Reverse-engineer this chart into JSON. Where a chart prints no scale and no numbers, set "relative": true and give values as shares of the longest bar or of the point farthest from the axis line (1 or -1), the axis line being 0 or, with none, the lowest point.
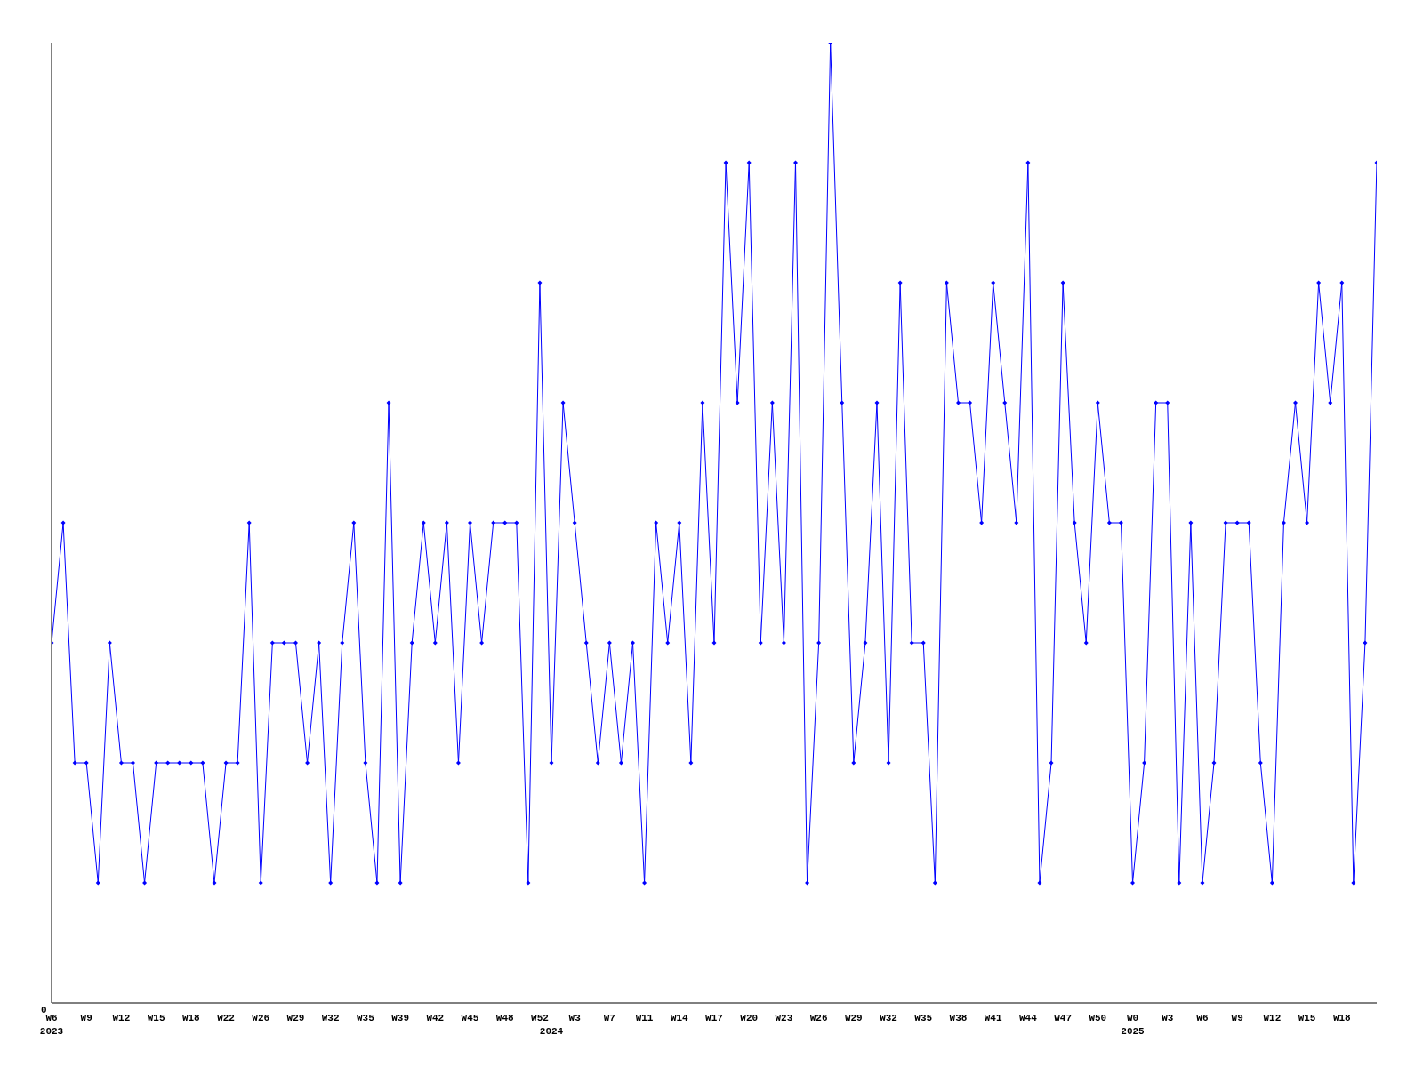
{
  "chart_data": {
    "type": "line",
    "relative": true,
    "marker": "diamond",
    "grid": false,
    "legend": false,
    "annotations": [
      "0"
    ],
    "categories": [
      "W6\n2023",
      null,
      null,
      "W9",
      null,
      null,
      "W12",
      null,
      null,
      "W15",
      null,
      null,
      "W18",
      null,
      null,
      "W22",
      null,
      null,
      "W26",
      null,
      null,
      "W29",
      null,
      null,
      "W32",
      null,
      null,
      "W35",
      null,
      null,
      "W39",
      null,
      null,
      "W42",
      null,
      null,
      "W45",
      null,
      null,
      "W48",
      null,
      null,
      "W52",
      "\n2024",
      null,
      "W3",
      null,
      null,
      "W7",
      null,
      null,
      "W11",
      null,
      null,
      "W14",
      null,
      null,
      "W17",
      null,
      null,
      "W20",
      null,
      null,
      "W23",
      null,
      null,
      "W26",
      null,
      null,
      "W29",
      null,
      null,
      "W32",
      null,
      null,
      "W35",
      null,
      null,
      "W38",
      null,
      null,
      "W41",
      null,
      null,
      "W44",
      null,
      null,
      "W47",
      null,
      null,
      "W50",
      null,
      null,
      "W0\n2025",
      null,
      null,
      "W3",
      null,
      null,
      "W6",
      null,
      null,
      "W9",
      null,
      null,
      "W12",
      null,
      null,
      "W15",
      null,
      null,
      "W18",
      null,
      null,
      null
    ],
    "series": [
      {
        "color": "#0000ff",
        "values": [
          0.375,
          0.5,
          0.25,
          0.25,
          0.125,
          0.375,
          0.25,
          0.25,
          0.125,
          0.25,
          0.25,
          0.25,
          0.25,
          0.25,
          0.125,
          0.25,
          0.25,
          0.5,
          0.125,
          0.375,
          0.375,
          0.375,
          0.25,
          0.375,
          0.125,
          0.375,
          0.5,
          0.25,
          0.125,
          0.625,
          0.125,
          0.375,
          0.5,
          0.375,
          0.5,
          0.25,
          0.5,
          0.375,
          0.5,
          0.5,
          0.5,
          0.125,
          0.75,
          0.25,
          0.625,
          0.5,
          0.375,
          0.25,
          0.375,
          0.25,
          0.375,
          0.125,
          0.5,
          0.375,
          0.5,
          0.25,
          0.625,
          0.375,
          0.875,
          0.625,
          0.875,
          0.375,
          0.625,
          0.375,
          0.875,
          0.125,
          0.375,
          1,
          0.625,
          0.25,
          0.375,
          0.625,
          0.25,
          0.75,
          0.375,
          0.375,
          0.125,
          0.75,
          0.625,
          0.625,
          0.5,
          0.75,
          0.625,
          0.5,
          0.875,
          0.125,
          0.25,
          0.75,
          0.5,
          0.375,
          0.625,
          0.5,
          0.5,
          0.125,
          0.25,
          0.625,
          0.625,
          0.125,
          0.5,
          0.125,
          0.25,
          0.5,
          0.5,
          0.5,
          0.25,
          0.125,
          0.5,
          0.625,
          0.5,
          0.75,
          0.625,
          0.75,
          0.125,
          0.375,
          0.875
        ]
      }
    ]
  }
}
